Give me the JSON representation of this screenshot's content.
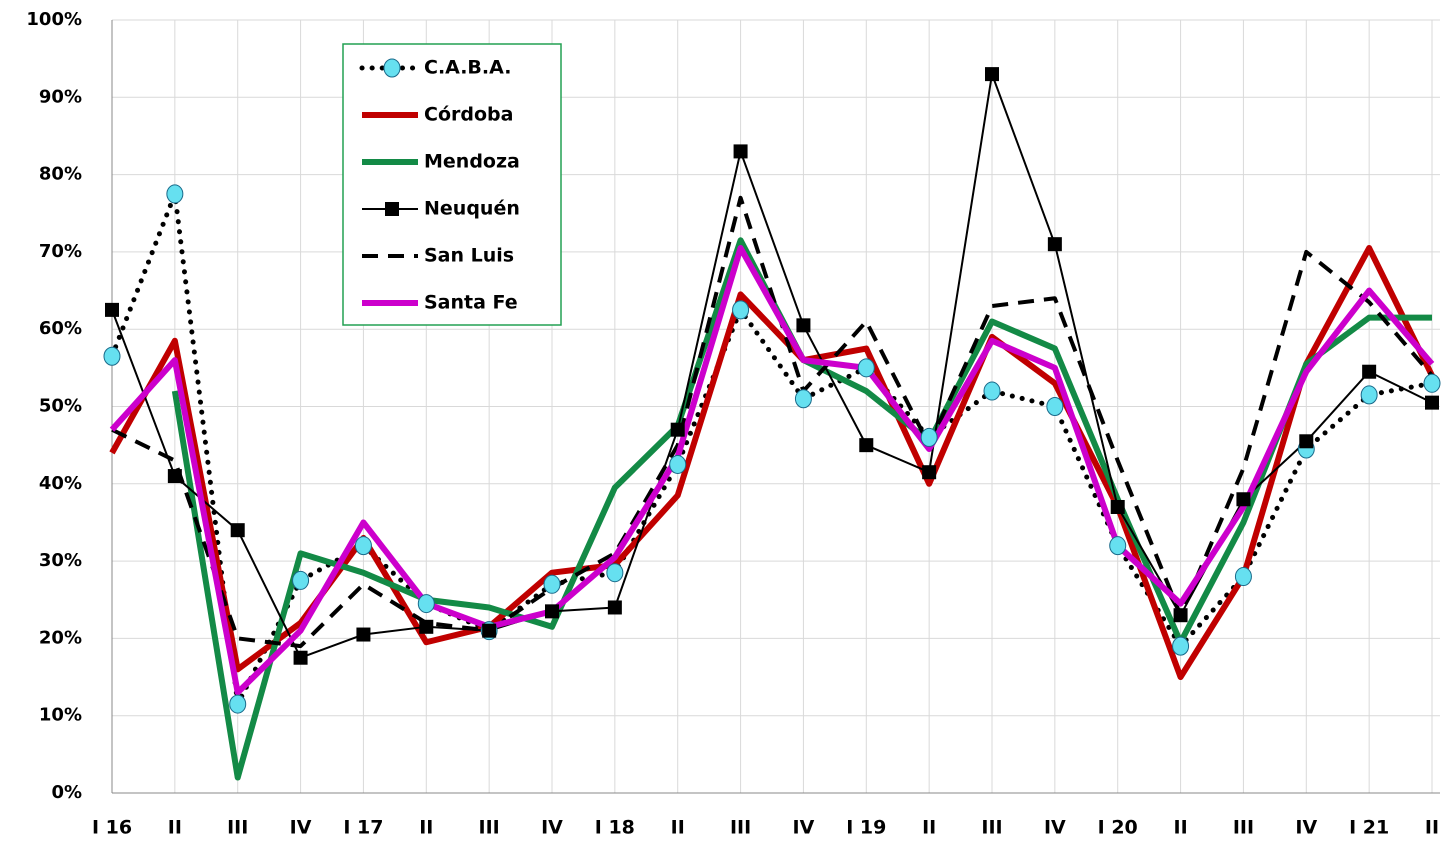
{
  "chart_data": {
    "type": "line",
    "categories": [
      "I 16",
      "II",
      "III",
      "IV",
      "I 17",
      "II",
      "III",
      "IV",
      "I 18",
      "II",
      "III",
      "IV",
      "I 19",
      "II",
      "III",
      "IV",
      "I 20",
      "II",
      "III",
      "IV",
      "I 21",
      "II"
    ],
    "ylim": [
      0,
      100
    ],
    "yticks": [
      {
        "value": 0,
        "label": "0%"
      },
      {
        "value": 10,
        "label": "10%"
      },
      {
        "value": 20,
        "label": "20%"
      },
      {
        "value": 30,
        "label": "30%"
      },
      {
        "value": 40,
        "label": "40%"
      },
      {
        "value": 50,
        "label": "50%"
      },
      {
        "value": 60,
        "label": "60%"
      },
      {
        "value": 70,
        "label": "70%"
      },
      {
        "value": 80,
        "label": "80%"
      },
      {
        "value": 90,
        "label": "90%"
      },
      {
        "value": 100,
        "label": "100%"
      }
    ],
    "grid": true,
    "series": [
      {
        "name": "C.A.B.A.",
        "color": "#000000",
        "dash": "dotted",
        "marker": "circle",
        "marker_color": "#66e0f0",
        "values": [
          56.5,
          77.5,
          11.5,
          27.5,
          32,
          24.5,
          21,
          27,
          28.5,
          42.5,
          62.5,
          51,
          55,
          46,
          52,
          50,
          32,
          19,
          28,
          44.5,
          51.5,
          53
        ]
      },
      {
        "name": "Córdoba",
        "color": "#c00000",
        "dash": "solid",
        "width": 6,
        "values": [
          44,
          58.5,
          16,
          22,
          33,
          19.5,
          21.5,
          28.5,
          29.5,
          38.5,
          64.5,
          56,
          57.5,
          40,
          59,
          53,
          37,
          15,
          28,
          55.5,
          70.5,
          54
        ]
      },
      {
        "name": "Mendoza",
        "color": "#138a46",
        "dash": "solid",
        "width": 6,
        "values": [
          null,
          52,
          2,
          31,
          28.5,
          25,
          24,
          21.5,
          39.5,
          47.5,
          71.5,
          56,
          52,
          45.5,
          61,
          57.5,
          38,
          19.5,
          35,
          55.5,
          61.5,
          61.5
        ]
      },
      {
        "name": "Neuquén",
        "color": "#000000",
        "dash": "solid",
        "width": 2,
        "marker": "square",
        "marker_color": "#000000",
        "values": [
          62.5,
          41,
          34,
          17.5,
          20.5,
          21.5,
          21,
          23.5,
          24,
          47,
          83,
          60.5,
          45,
          41.5,
          93,
          71,
          37,
          23,
          38,
          45.5,
          54.5,
          50.5
        ]
      },
      {
        "name": "San Luis",
        "color": "#000000",
        "dash": "dashed",
        "width": 4,
        "values": [
          47,
          43,
          20,
          19,
          27,
          22,
          21,
          26.5,
          31,
          45,
          77,
          52,
          61,
          45,
          63,
          64,
          43,
          23,
          42,
          70,
          63.5,
          54
        ]
      },
      {
        "name": "Santa Fe",
        "color": "#cc00cc",
        "dash": "solid",
        "width": 6,
        "values": [
          47,
          56,
          13,
          21,
          35,
          24.5,
          21.5,
          23.5,
          30.5,
          43.5,
          70.5,
          56,
          55,
          44.5,
          58.5,
          55,
          32,
          24.5,
          37,
          54.5,
          65,
          55.5
        ]
      }
    ]
  }
}
